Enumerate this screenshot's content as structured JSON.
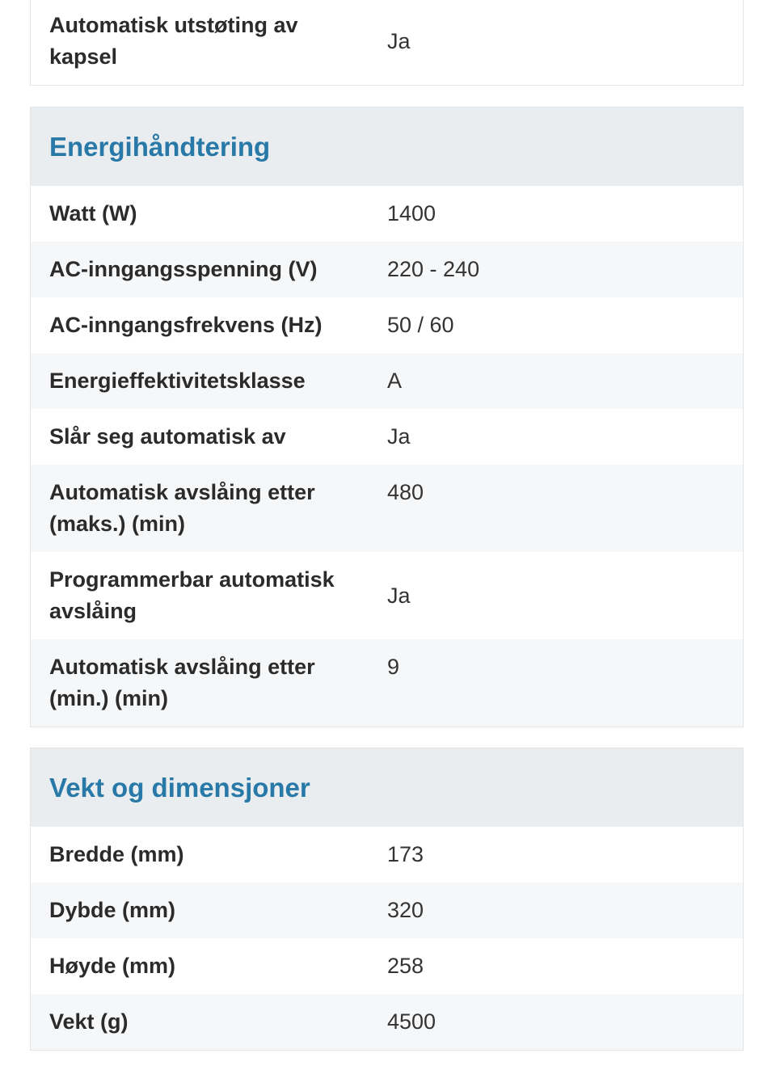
{
  "sections": [
    {
      "title": "",
      "rows": [
        {
          "label": "Automatisk utstøting av kapsel",
          "value": "Ja"
        }
      ]
    },
    {
      "title": "Energihåndtering",
      "rows": [
        {
          "label": "Watt (W)",
          "value": "1400"
        },
        {
          "label": "AC-inngangsspenning (V)",
          "value": "220 - 240"
        },
        {
          "label": "AC-inngangsfrekvens (Hz)",
          "value": "50 / 60"
        },
        {
          "label": "Energieffektivitetsklasse",
          "value": "A"
        },
        {
          "label": "Slår seg automatisk av",
          "value": "Ja"
        },
        {
          "label": "Automatisk avslåing etter (maks.) (min)",
          "value": "480"
        },
        {
          "label": "Programmerbar automatisk avslåing",
          "value": "Ja"
        },
        {
          "label": "Automatisk avslåing etter (min.) (min)",
          "value": "9"
        }
      ]
    },
    {
      "title": "Vekt og dimensjoner",
      "rows": [
        {
          "label": "Bredde (mm)",
          "value": "173"
        },
        {
          "label": "Dybde (mm)",
          "value": "320"
        },
        {
          "label": "Høyde (mm)",
          "value": "258"
        },
        {
          "label": "Vekt (g)",
          "value": "4500"
        }
      ]
    }
  ]
}
